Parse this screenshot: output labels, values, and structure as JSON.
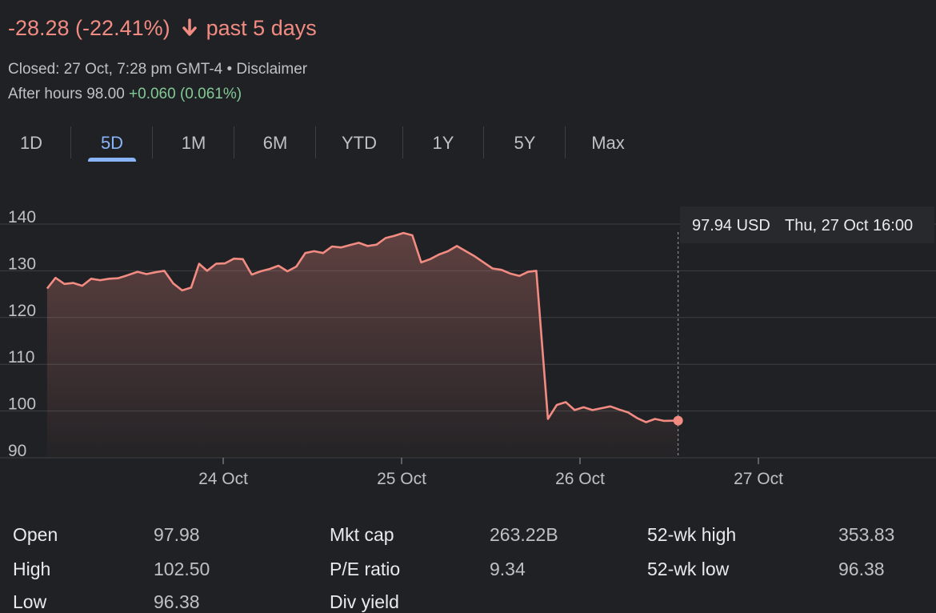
{
  "header": {
    "change": "-28.28 (-22.41%)",
    "period": "past 5 days",
    "arrow_icon": "arrow-down-icon",
    "closed_text": "Closed: 27 Oct, 7:28 pm GMT-4 • Disclaimer",
    "after_hours_label": "After hours 98.00",
    "after_hours_change": "+0.060 (0.061%)"
  },
  "tabs": [
    "1D",
    "5D",
    "1M",
    "6M",
    "YTD",
    "1Y",
    "5Y",
    "Max"
  ],
  "active_tab": "5D",
  "tooltip": {
    "price": "97.94 USD",
    "date": "Thu, 27 Oct 16:00"
  },
  "colors": {
    "line": "#f28b82",
    "accent": "#8ab4f8",
    "positive": "#81c995",
    "background": "#202124",
    "grid": "#3c4043"
  },
  "chart_data": {
    "type": "area",
    "title": "",
    "xlabel": "",
    "ylabel": "",
    "ylim": [
      90,
      140
    ],
    "yticks": [
      140,
      130,
      120,
      110,
      100,
      90
    ],
    "day_labels": [
      "24 Oct",
      "25 Oct",
      "26 Oct",
      "27 Oct"
    ],
    "x_range": [
      -0.987,
      4.0
    ],
    "day_ticks": [
      0,
      1,
      2,
      3
    ],
    "grid": true,
    "series": [
      {
        "values": [
          [
            -0.987,
            126.2
          ],
          [
            -0.94,
            128.5
          ],
          [
            -0.89,
            127.2
          ],
          [
            -0.84,
            127.4
          ],
          [
            -0.79,
            126.8
          ],
          [
            -0.74,
            128.3
          ],
          [
            -0.69,
            128.0
          ],
          [
            -0.64,
            128.3
          ],
          [
            -0.59,
            128.4
          ],
          [
            -0.54,
            129.0
          ],
          [
            -0.48,
            129.8
          ],
          [
            -0.43,
            129.3
          ],
          [
            -0.38,
            129.7
          ],
          [
            -0.33,
            130.0
          ],
          [
            -0.28,
            127.3
          ],
          [
            -0.23,
            125.8
          ],
          [
            -0.18,
            126.4
          ],
          [
            -0.135,
            131.5
          ],
          [
            -0.09,
            130.0
          ],
          [
            -0.04,
            131.5
          ],
          [
            0.01,
            131.6
          ],
          [
            0.06,
            132.6
          ],
          [
            0.11,
            132.5
          ],
          [
            0.16,
            129.2
          ],
          [
            0.21,
            129.9
          ],
          [
            0.26,
            130.4
          ],
          [
            0.31,
            131.1
          ],
          [
            0.36,
            129.9
          ],
          [
            0.41,
            130.9
          ],
          [
            0.46,
            133.8
          ],
          [
            0.51,
            134.2
          ],
          [
            0.56,
            133.8
          ],
          [
            0.61,
            135.2
          ],
          [
            0.66,
            135.0
          ],
          [
            0.71,
            135.5
          ],
          [
            0.76,
            136.0
          ],
          [
            0.81,
            135.3
          ],
          [
            0.86,
            135.6
          ],
          [
            0.91,
            137.0
          ],
          [
            0.96,
            137.5
          ],
          [
            1.01,
            138.1
          ],
          [
            1.06,
            137.6
          ],
          [
            1.11,
            131.8
          ],
          [
            1.16,
            132.5
          ],
          [
            1.21,
            133.5
          ],
          [
            1.26,
            134.2
          ],
          [
            1.31,
            135.3
          ],
          [
            1.36,
            134.2
          ],
          [
            1.41,
            133.1
          ],
          [
            1.46,
            131.8
          ],
          [
            1.51,
            130.5
          ],
          [
            1.56,
            130.2
          ],
          [
            1.61,
            129.4
          ],
          [
            1.66,
            128.9
          ],
          [
            1.71,
            129.8
          ],
          [
            1.755,
            130.0
          ],
          [
            1.82,
            98.3
          ],
          [
            1.87,
            101.3
          ],
          [
            1.92,
            101.9
          ],
          [
            1.97,
            100.2
          ],
          [
            2.02,
            100.8
          ],
          [
            2.07,
            100.2
          ],
          [
            2.12,
            100.6
          ],
          [
            2.17,
            101.0
          ],
          [
            2.22,
            100.3
          ],
          [
            2.27,
            99.7
          ],
          [
            2.32,
            98.5
          ],
          [
            2.37,
            97.6
          ],
          [
            2.42,
            98.3
          ],
          [
            2.47,
            97.9
          ],
          [
            2.55,
            97.94
          ]
        ]
      }
    ]
  },
  "stats": [
    {
      "label": "Open",
      "value": "97.98"
    },
    {
      "label": "High",
      "value": "102.50"
    },
    {
      "label": "Low",
      "value": "96.38"
    },
    {
      "label": "Mkt cap",
      "value": "263.22B"
    },
    {
      "label": "P/E ratio",
      "value": "9.34"
    },
    {
      "label": "Div yield",
      "value": ""
    },
    {
      "label": "52-wk high",
      "value": "353.83"
    },
    {
      "label": "52-wk low",
      "value": "96.38"
    }
  ]
}
